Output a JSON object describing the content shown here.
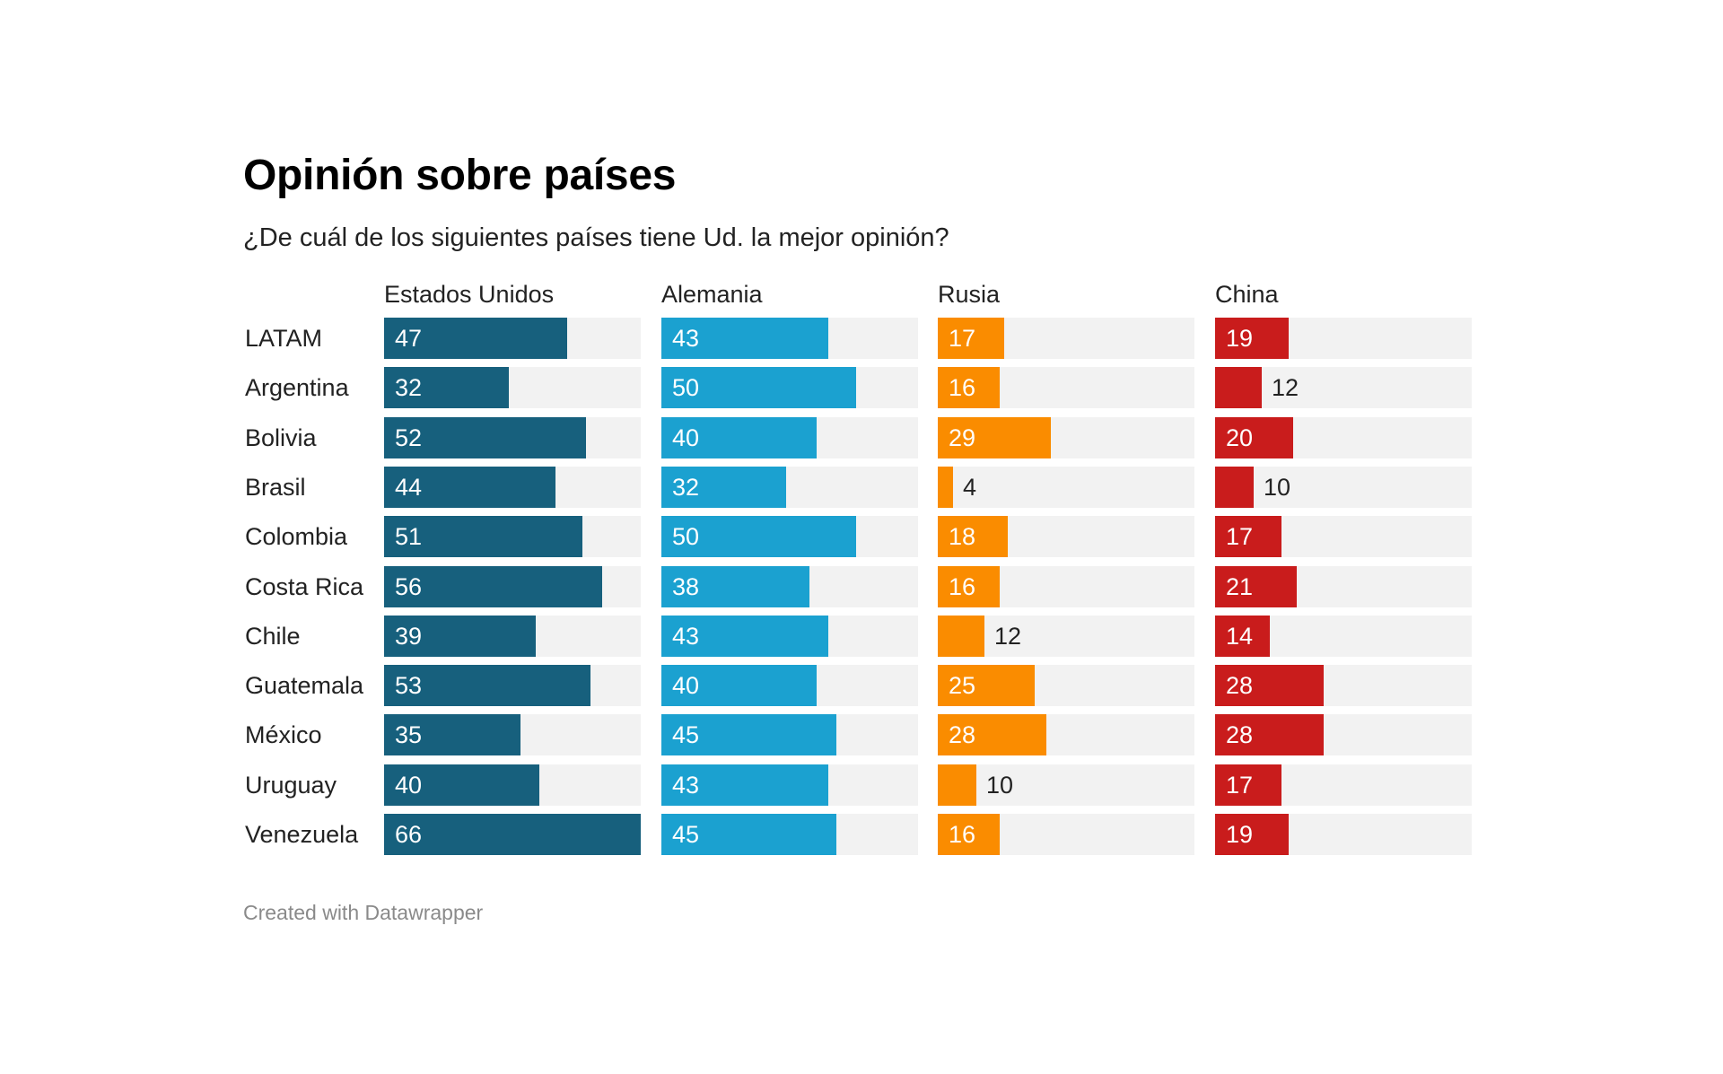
{
  "chart_data": {
    "type": "bar",
    "title": "Opinión sobre países",
    "subtitle": "¿De cuál de los siguientes países tiene Ud. la mejor opinión?",
    "footer": "Created with Datawrapper",
    "xlim": [
      0,
      66
    ],
    "grid": false,
    "legend": "none",
    "categories": [
      "LATAM",
      "Argentina",
      "Bolivia",
      "Brasil",
      "Colombia",
      "Costa Rica",
      "Chile",
      "Guatemala",
      "México",
      "Uruguay",
      "Venezuela"
    ],
    "series": [
      {
        "name": "Estados Unidos",
        "color": "#17607d",
        "values": [
          47,
          32,
          52,
          44,
          51,
          56,
          39,
          53,
          35,
          40,
          66
        ]
      },
      {
        "name": "Alemania",
        "color": "#1ba1d0",
        "values": [
          43,
          50,
          40,
          32,
          50,
          38,
          43,
          40,
          45,
          43,
          45
        ]
      },
      {
        "name": "Rusia",
        "color": "#fa8c00",
        "values": [
          17,
          16,
          29,
          4,
          18,
          16,
          12,
          25,
          28,
          10,
          16
        ]
      },
      {
        "name": "China",
        "color": "#c91c1c",
        "values": [
          19,
          12,
          20,
          10,
          17,
          21,
          14,
          28,
          28,
          17,
          19
        ]
      }
    ],
    "track_color": "#f2f2f2"
  }
}
